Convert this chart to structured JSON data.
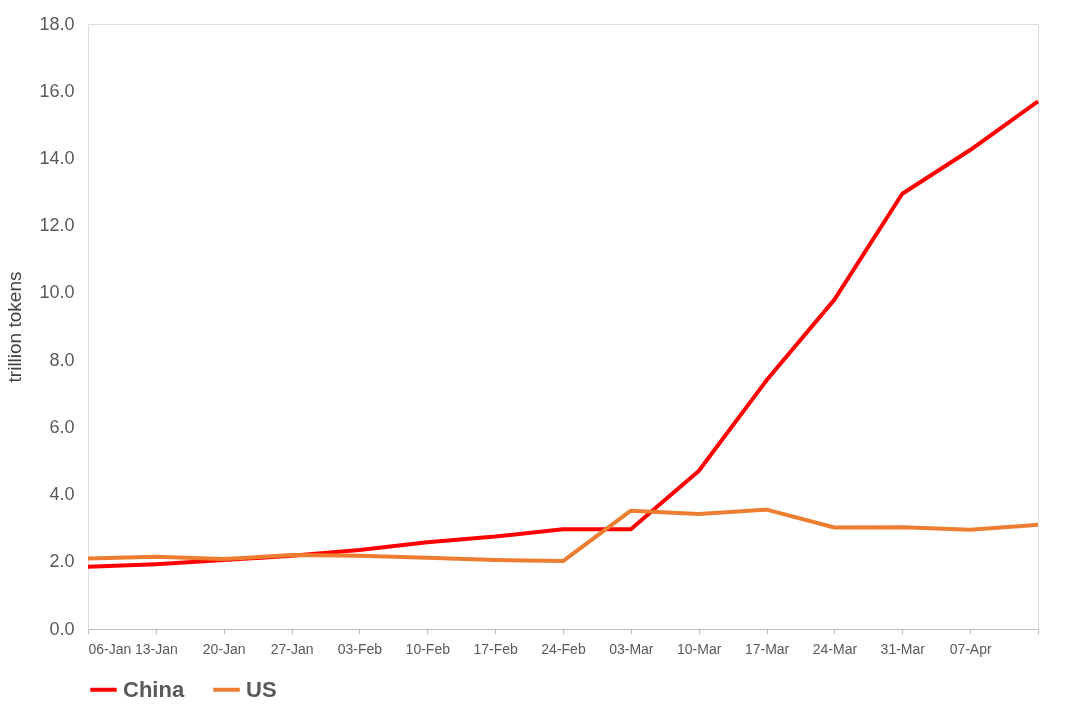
{
  "chart_data": {
    "type": "line",
    "ylabel": "trillion tokens",
    "categories": [
      "06-Jan",
      "13-Jan",
      "20-Jan",
      "27-Jan",
      "03-Feb",
      "10-Feb",
      "17-Feb",
      "24-Feb",
      "03-Mar",
      "10-Mar",
      "17-Mar",
      "24-Mar",
      "31-Mar",
      "07-Apr",
      null
    ],
    "series": [
      {
        "name": "China",
        "color": "#ff0000",
        "values": [
          1.85,
          1.93,
          2.05,
          2.18,
          2.35,
          2.58,
          2.75,
          2.97,
          2.97,
          4.7,
          7.4,
          9.8,
          12.95,
          14.25,
          15.7
        ]
      },
      {
        "name": "US",
        "color": "#ed7d31",
        "values": [
          2.1,
          2.15,
          2.08,
          2.2,
          2.18,
          2.12,
          2.05,
          2.02,
          3.52,
          3.42,
          3.55,
          3.02,
          3.03,
          2.95,
          3.1
        ]
      }
    ],
    "ylim": [
      0,
      18
    ],
    "yticks": [
      {
        "value": 0,
        "label": "0.0"
      },
      {
        "value": 2,
        "label": "2.0"
      },
      {
        "value": 4,
        "label": "4.0"
      },
      {
        "value": 6,
        "label": "6.0"
      },
      {
        "value": 8,
        "label": "8.0"
      },
      {
        "value": 10,
        "label": "10.0"
      },
      {
        "value": 12,
        "label": "12.0"
      },
      {
        "value": 14,
        "label": "14.0"
      },
      {
        "value": 16,
        "label": "16.0"
      },
      {
        "value": 18,
        "label": "18.0"
      }
    ],
    "grid": false,
    "legend": "bottom",
    "marker": "none",
    "line_style": "solid"
  }
}
